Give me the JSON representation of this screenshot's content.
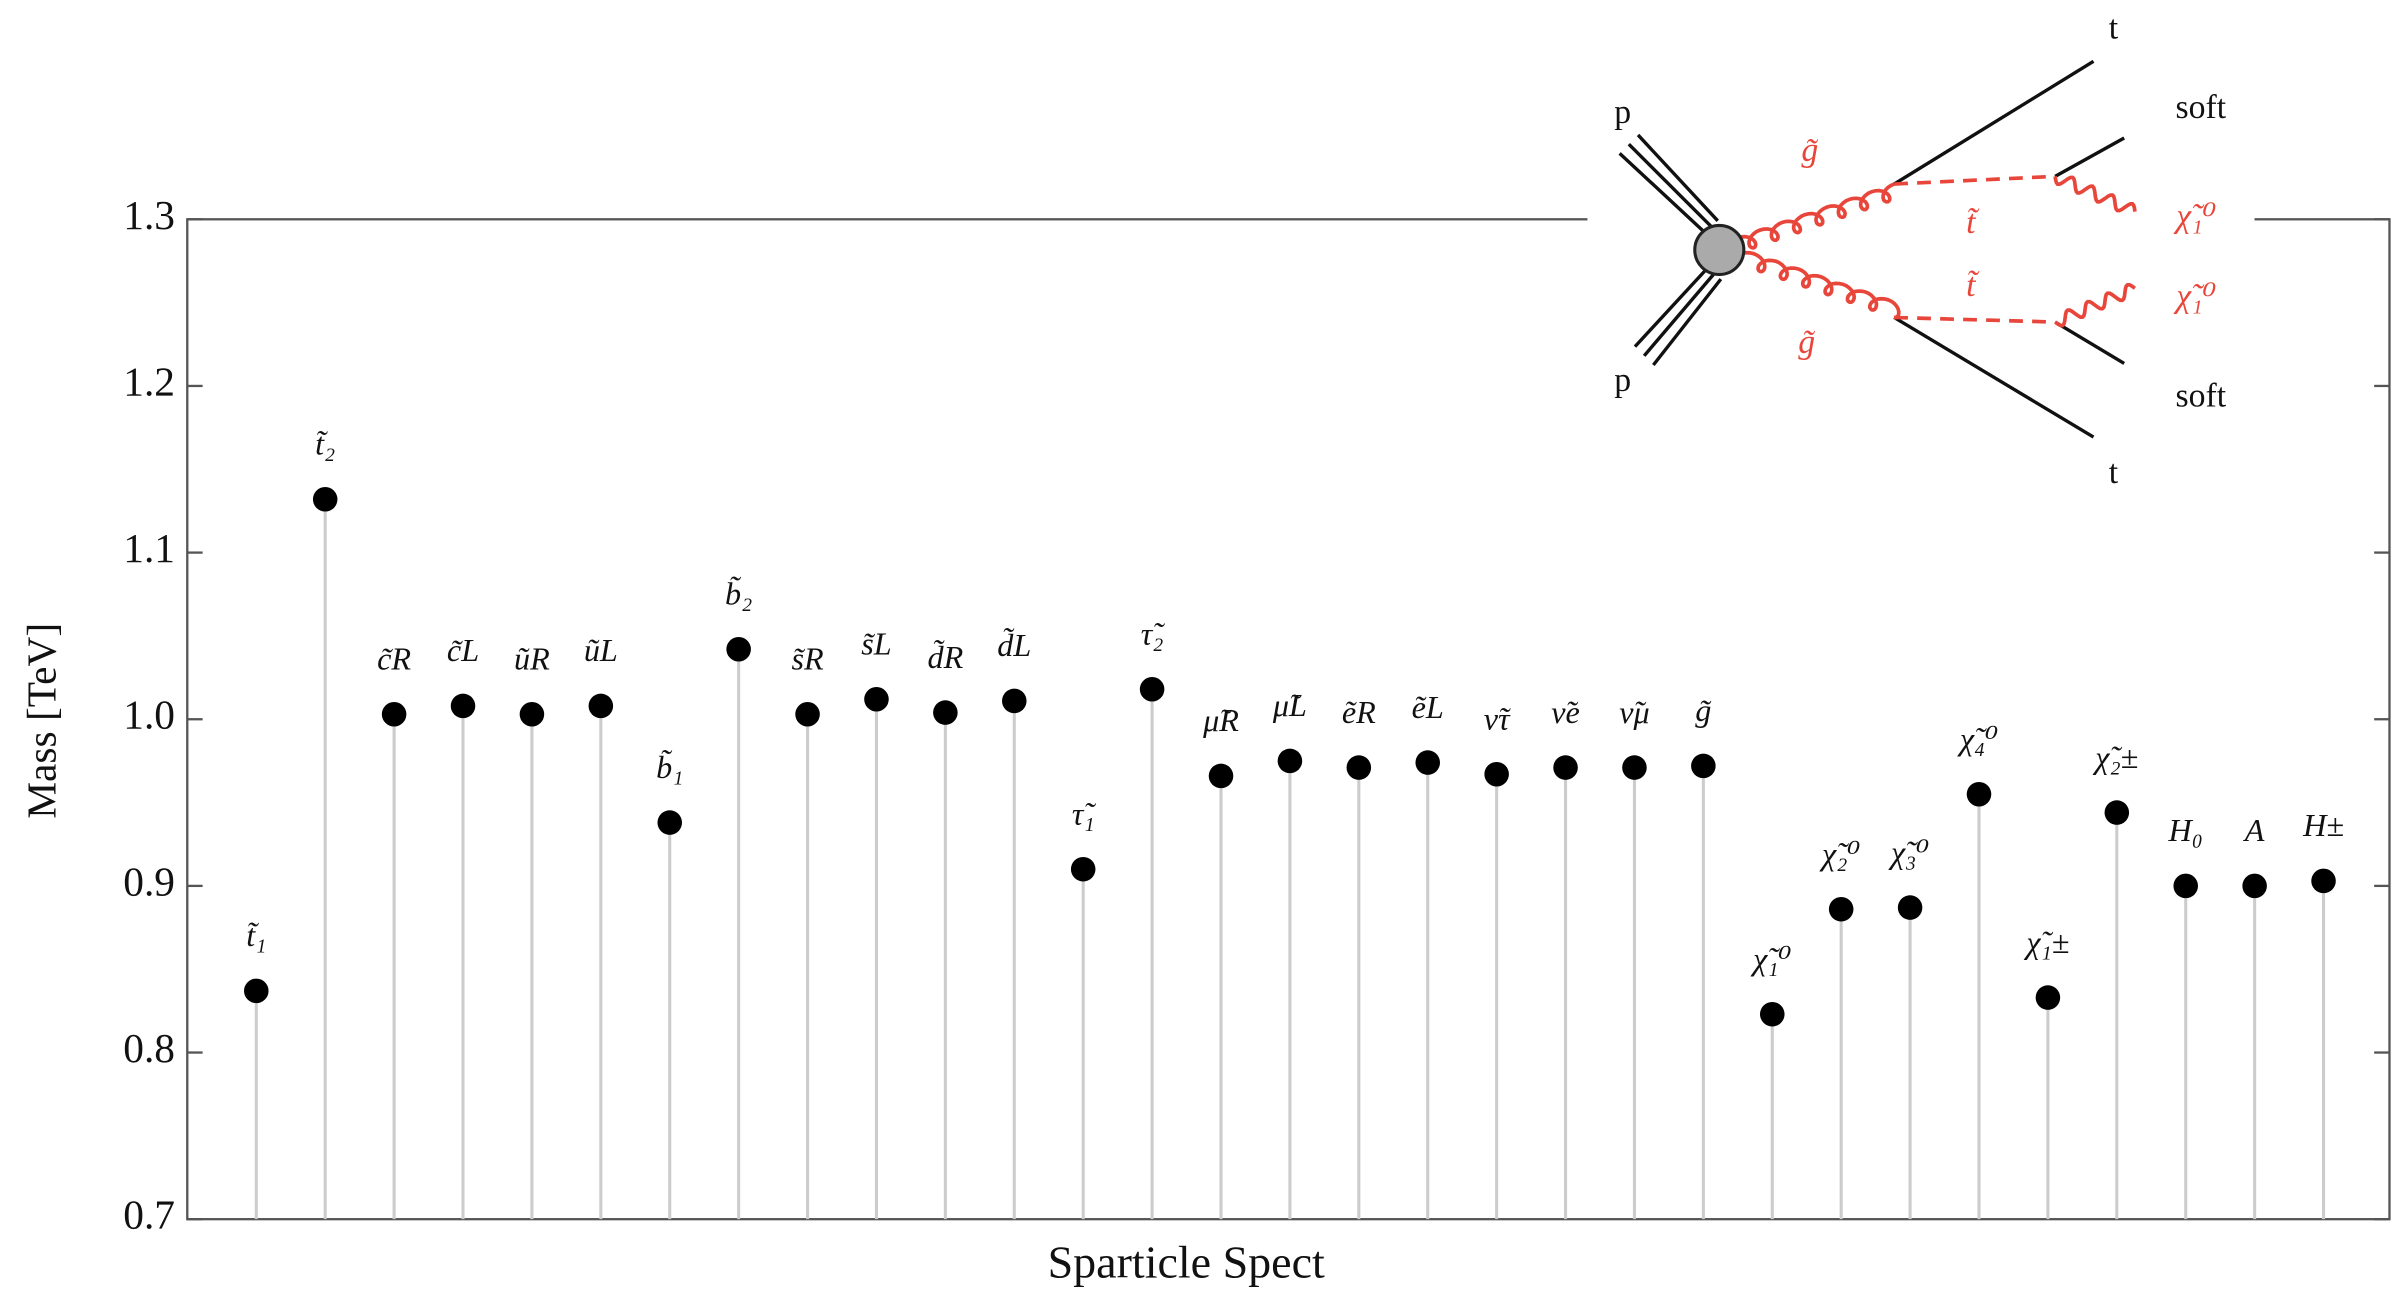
{
  "chart_data": {
    "type": "stem",
    "ylabel": "Mass [TeV]",
    "xlabel": "Sparticle Spect",
    "categories": [
      "t̃₁",
      "t̃₂",
      "c̃R",
      "c̃L",
      "ũR",
      "ũL",
      "b̃₁",
      "b̃₂",
      "s̃R",
      "s̃L",
      "d̃R",
      "d̃L",
      "τ̃₁",
      "τ̃₂",
      "μ̃R",
      "μ̃L",
      "ẽR",
      "ẽL",
      "ν̃τ",
      "ν̃e",
      "ν̃μ",
      "g̃",
      "χ̃₁⁰",
      "χ̃₂⁰",
      "χ̃₃⁰",
      "χ̃₄⁰",
      "χ̃₁±",
      "χ̃₂±",
      "H₀",
      "A",
      "H±"
    ],
    "values": [
      0.837,
      1.132,
      1.003,
      1.008,
      1.003,
      1.008,
      0.938,
      1.042,
      1.003,
      1.012,
      1.004,
      1.011,
      0.91,
      1.018,
      0.966,
      0.975,
      0.971,
      0.974,
      0.967,
      0.971,
      0.971,
      0.972,
      0.823,
      0.886,
      0.887,
      0.955,
      0.833,
      0.944,
      0.9,
      0.9,
      0.903
    ],
    "color": "#000000",
    "stem_color": "#cccccc",
    "ylim": [
      0.7,
      1.3
    ],
    "yticks": [
      0.7,
      0.8,
      0.9,
      {
        "value": 1,
        "label": "1.0"
      },
      1.1,
      1.2,
      1.3
    ],
    "diagram_labels": [
      "p",
      "p",
      "g̃",
      "g̃",
      "t̃",
      "t̃",
      "t",
      "t",
      "soft",
      "soft",
      "χ̃₁⁰",
      "χ̃₁⁰"
    ]
  }
}
